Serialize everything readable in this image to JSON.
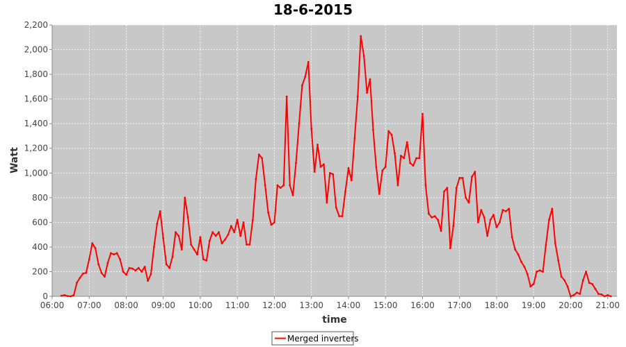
{
  "chart_data": {
    "type": "line",
    "title": "18-6-2015",
    "xlabel": "time",
    "ylabel": "Watt",
    "xlim": [
      "06:00",
      "21:15"
    ],
    "ylim": [
      0,
      2200
    ],
    "x_ticks": [
      "06:00",
      "07:00",
      "08:00",
      "09:00",
      "10:00",
      "11:00",
      "12:00",
      "13:00",
      "14:00",
      "15:00",
      "16:00",
      "17:00",
      "18:00",
      "19:00",
      "20:00",
      "21:00"
    ],
    "y_ticks": [
      "0",
      "200",
      "400",
      "600",
      "800",
      "1,000",
      "1,200",
      "1,400",
      "1,600",
      "1,800",
      "2,000",
      "2,200"
    ],
    "grid": true,
    "legend_position": "bottom-center",
    "colors": {
      "plot_background": "#c8c8c8",
      "grid": "#ffffff",
      "series": "#ff0000"
    },
    "series": [
      {
        "name": "Merged inverters",
        "x": [
          "06:15",
          "06:20",
          "06:25",
          "06:30",
          "06:35",
          "06:40",
          "06:45",
          "06:50",
          "06:55",
          "07:00",
          "07:05",
          "07:10",
          "07:15",
          "07:20",
          "07:25",
          "07:30",
          "07:35",
          "07:40",
          "07:45",
          "07:50",
          "07:55",
          "08:00",
          "08:05",
          "08:10",
          "08:15",
          "08:20",
          "08:25",
          "08:30",
          "08:35",
          "08:40",
          "08:45",
          "08:50",
          "08:55",
          "09:00",
          "09:05",
          "09:10",
          "09:15",
          "09:20",
          "09:25",
          "09:30",
          "09:35",
          "09:40",
          "09:45",
          "09:50",
          "09:55",
          "10:00",
          "10:05",
          "10:10",
          "10:15",
          "10:20",
          "10:25",
          "10:30",
          "10:35",
          "10:40",
          "10:45",
          "10:50",
          "10:55",
          "11:00",
          "11:05",
          "11:10",
          "11:15",
          "11:20",
          "11:25",
          "11:30",
          "11:35",
          "11:40",
          "11:45",
          "11:50",
          "11:55",
          "12:00",
          "12:05",
          "12:10",
          "12:15",
          "12:20",
          "12:25",
          "12:30",
          "12:35",
          "12:40",
          "12:45",
          "12:50",
          "12:55",
          "13:00",
          "13:05",
          "13:10",
          "13:15",
          "13:20",
          "13:25",
          "13:30",
          "13:35",
          "13:40",
          "13:45",
          "13:50",
          "13:55",
          "14:00",
          "14:05",
          "14:10",
          "14:15",
          "14:20",
          "14:25",
          "14:30",
          "14:35",
          "14:40",
          "14:45",
          "14:50",
          "14:55",
          "15:00",
          "15:05",
          "15:10",
          "15:15",
          "15:20",
          "15:25",
          "15:30",
          "15:35",
          "15:40",
          "15:45",
          "15:50",
          "15:55",
          "16:00",
          "16:05",
          "16:10",
          "16:15",
          "16:20",
          "16:25",
          "16:30",
          "16:35",
          "16:40",
          "16:45",
          "16:50",
          "16:55",
          "17:00",
          "17:05",
          "17:10",
          "17:15",
          "17:20",
          "17:25",
          "17:30",
          "17:35",
          "17:40",
          "17:45",
          "17:50",
          "17:55",
          "18:00",
          "18:05",
          "18:10",
          "18:15",
          "18:20",
          "18:25",
          "18:30",
          "18:35",
          "18:40",
          "18:45",
          "18:50",
          "18:55",
          "19:00",
          "19:05",
          "19:10",
          "19:15",
          "19:20",
          "19:25",
          "19:30",
          "19:35",
          "19:40",
          "19:45",
          "19:50",
          "19:55",
          "20:00",
          "20:05",
          "20:10",
          "20:15",
          "20:20",
          "20:25",
          "20:30",
          "20:35",
          "20:40",
          "20:45",
          "20:50",
          "20:55",
          "21:00",
          "21:05"
        ],
        "values": [
          5,
          10,
          2,
          0,
          10,
          110,
          150,
          185,
          190,
          300,
          430,
          390,
          260,
          190,
          160,
          270,
          350,
          340,
          350,
          300,
          200,
          175,
          230,
          225,
          210,
          230,
          200,
          240,
          125,
          180,
          400,
          590,
          690,
          470,
          260,
          230,
          320,
          520,
          490,
          380,
          800,
          640,
          420,
          380,
          340,
          480,
          300,
          290,
          450,
          520,
          490,
          520,
          430,
          460,
          500,
          570,
          520,
          620,
          490,
          600,
          420,
          420,
          620,
          950,
          1150,
          1120,
          900,
          680,
          580,
          600,
          900,
          880,
          900,
          1620,
          900,
          820,
          1080,
          1400,
          1710,
          1780,
          1900,
          1360,
          1010,
          1230,
          1050,
          1070,
          760,
          1000,
          990,
          720,
          650,
          650,
          850,
          1040,
          940,
          1280,
          1620,
          2110,
          1950,
          1650,
          1760,
          1350,
          1050,
          830,
          1020,
          1050,
          1340,
          1310,
          1160,
          900,
          1140,
          1120,
          1250,
          1080,
          1060,
          1120,
          1120,
          1480,
          900,
          670,
          640,
          650,
          620,
          530,
          850,
          880,
          390,
          570,
          880,
          960,
          960,
          800,
          760,
          970,
          1010,
          600,
          700,
          640,
          490,
          620,
          660,
          560,
          600,
          700,
          690,
          710,
          480,
          380,
          340,
          280,
          240,
          180,
          80,
          100,
          200,
          210,
          200,
          420,
          620,
          710,
          430,
          290,
          160,
          130,
          80,
          0,
          10,
          30,
          20,
          130,
          200,
          110,
          100,
          60,
          20,
          15,
          0,
          10,
          0
        ]
      }
    ]
  }
}
